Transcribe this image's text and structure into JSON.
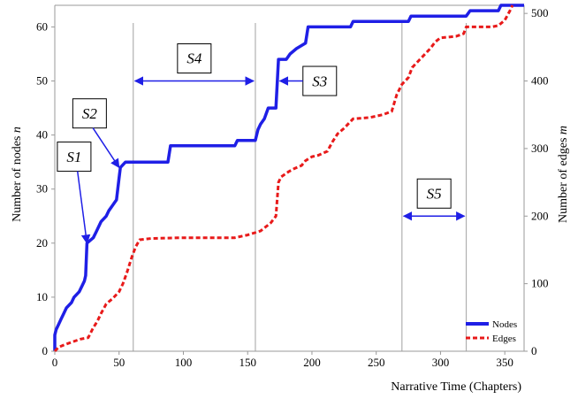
{
  "chart_data": {
    "type": "line",
    "xlabel": "Narrative Time (Chapters)",
    "ylabel_left": "Number of nodes n",
    "ylabel_left_parts": [
      "Number of nodes ",
      "n"
    ],
    "ylabel_right": "Number of edges m",
    "ylabel_right_parts": [
      "Number of edges ",
      "m"
    ],
    "xlim": [
      0,
      365
    ],
    "ylim_left": [
      0,
      64
    ],
    "ylim_right": [
      0,
      512
    ],
    "x_ticks": [
      0,
      50,
      100,
      150,
      200,
      250,
      300,
      350
    ],
    "y_left_ticks": [
      0,
      10,
      20,
      30,
      40,
      50,
      60
    ],
    "y_right_ticks": [
      0,
      100,
      200,
      300,
      400,
      500
    ],
    "grid": false,
    "legend_position": "bottom-right",
    "series": [
      {
        "name": "Nodes",
        "axis": "left",
        "style": "solid",
        "color": "#1f1fe6",
        "points": [
          [
            0,
            0
          ],
          [
            0,
            3
          ],
          [
            1,
            4
          ],
          [
            3,
            5
          ],
          [
            5,
            6
          ],
          [
            7,
            7
          ],
          [
            9,
            8
          ],
          [
            13,
            9
          ],
          [
            15,
            10
          ],
          [
            19,
            11
          ],
          [
            21,
            12
          ],
          [
            23,
            13
          ],
          [
            24,
            14
          ],
          [
            25,
            20
          ],
          [
            30,
            21
          ],
          [
            32,
            22
          ],
          [
            34,
            23
          ],
          [
            36,
            24
          ],
          [
            40,
            25
          ],
          [
            42,
            26
          ],
          [
            45,
            27
          ],
          [
            48,
            28
          ],
          [
            50,
            32
          ],
          [
            51,
            34
          ],
          [
            55,
            35
          ],
          [
            60,
            35
          ],
          [
            62,
            35
          ],
          [
            88,
            35
          ],
          [
            90,
            38
          ],
          [
            120,
            38
          ],
          [
            140,
            38
          ],
          [
            142,
            39
          ],
          [
            156,
            39
          ],
          [
            158,
            41
          ],
          [
            160,
            42
          ],
          [
            163,
            43
          ],
          [
            166,
            45
          ],
          [
            172,
            45
          ],
          [
            174,
            54
          ],
          [
            180,
            54
          ],
          [
            183,
            55
          ],
          [
            188,
            56
          ],
          [
            195,
            57
          ],
          [
            197,
            60
          ],
          [
            230,
            60
          ],
          [
            232,
            61
          ],
          [
            275,
            61
          ],
          [
            277,
            62
          ],
          [
            320,
            62
          ],
          [
            323,
            63
          ],
          [
            345,
            63
          ],
          [
            347,
            64
          ],
          [
            365,
            64
          ]
        ]
      },
      {
        "name": "Edges",
        "axis": "right",
        "style": "dashed",
        "color": "#e81a1a",
        "points": [
          [
            0,
            0
          ],
          [
            3,
            6
          ],
          [
            8,
            10
          ],
          [
            14,
            14
          ],
          [
            20,
            18
          ],
          [
            26,
            20
          ],
          [
            30,
            35
          ],
          [
            33,
            44
          ],
          [
            36,
            56
          ],
          [
            40,
            70
          ],
          [
            45,
            78
          ],
          [
            50,
            88
          ],
          [
            53,
            100
          ],
          [
            56,
            116
          ],
          [
            60,
            140
          ],
          [
            63,
            155
          ],
          [
            66,
            165
          ],
          [
            75,
            167
          ],
          [
            100,
            168
          ],
          [
            140,
            168
          ],
          [
            150,
            172
          ],
          [
            160,
            178
          ],
          [
            168,
            190
          ],
          [
            172,
            200
          ],
          [
            174,
            250
          ],
          [
            176,
            258
          ],
          [
            182,
            266
          ],
          [
            186,
            270
          ],
          [
            192,
            275
          ],
          [
            195,
            282
          ],
          [
            200,
            288
          ],
          [
            205,
            290
          ],
          [
            212,
            296
          ],
          [
            216,
            310
          ],
          [
            220,
            322
          ],
          [
            225,
            330
          ],
          [
            232,
            344
          ],
          [
            245,
            346
          ],
          [
            255,
            350
          ],
          [
            262,
            355
          ],
          [
            266,
            380
          ],
          [
            270,
            395
          ],
          [
            275,
            405
          ],
          [
            278,
            420
          ],
          [
            283,
            430
          ],
          [
            288,
            440
          ],
          [
            292,
            448
          ],
          [
            296,
            458
          ],
          [
            300,
            464
          ],
          [
            312,
            466
          ],
          [
            318,
            470
          ],
          [
            320,
            480
          ],
          [
            340,
            480
          ],
          [
            345,
            482
          ],
          [
            350,
            490
          ],
          [
            354,
            504
          ],
          [
            356,
            512
          ]
        ]
      }
    ],
    "annotations": [
      {
        "label": "S1",
        "text": "S1",
        "box": [
          2,
          36
        ],
        "arrow_to": [
          25,
          20
        ]
      },
      {
        "label": "S2",
        "text": "S2",
        "box": [
          14,
          44
        ],
        "arrow_to": [
          50,
          34
        ]
      },
      {
        "label": "S3",
        "text": "S3",
        "box": [
          193,
          50
        ],
        "arrow_to": [
          175,
          50
        ]
      },
      {
        "label": "S4",
        "text": "S4",
        "span": [
          61,
          156
        ],
        "y": 50
      },
      {
        "label": "S5",
        "text": "S5",
        "span": [
          270,
          320
        ],
        "y": 25
      }
    ],
    "vertical_lines_x": [
      61,
      156,
      270,
      320
    ]
  }
}
